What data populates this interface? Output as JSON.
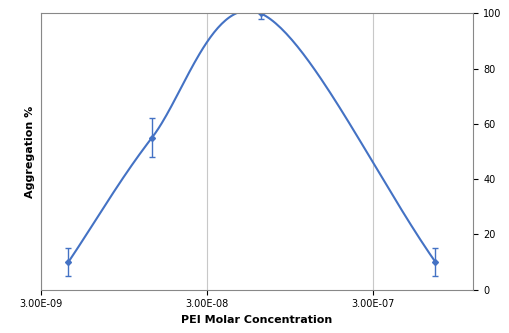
{
  "chart_data": {
    "type": "line",
    "x_label": "PEI Molar Concentration",
    "y_label": "Aggregation %",
    "x": [
      4.4e-09,
      1.4e-08,
      6.3e-08,
      7.1e-07
    ],
    "values": [
      10,
      55,
      100,
      10
    ],
    "errors": [
      5,
      7,
      2,
      5
    ],
    "color": "#4472c4",
    "marker": "diamond",
    "line_style": "smooth",
    "log": "x",
    "grid": true,
    "xlim": [
      3e-09,
      1.2e-06
    ],
    "xticks": [
      {
        "value": 3e-09,
        "label": "3.00E-09"
      },
      {
        "value": 3e-08,
        "label": "3.00E-08"
      },
      {
        "value": 3e-07,
        "label": "3.00E-07"
      }
    ],
    "ylim": [
      0,
      100
    ],
    "yticks": [
      0,
      20,
      40,
      60,
      80,
      100
    ]
  }
}
